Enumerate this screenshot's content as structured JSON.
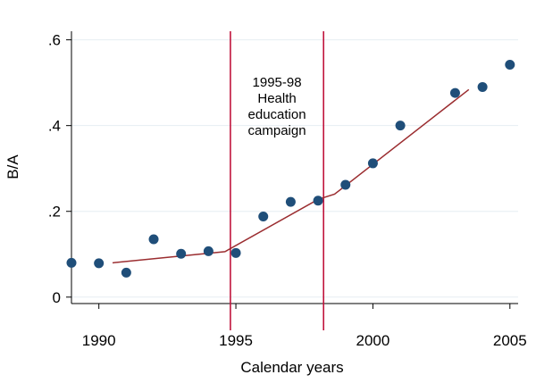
{
  "chart_data": {
    "type": "scatter",
    "xlabel": "Calendar years",
    "ylabel": "B/A",
    "xlim": [
      1989.0,
      2005.3
    ],
    "ylim": [
      -0.015,
      0.62
    ],
    "grid": true,
    "x_ticks": [
      1990,
      1995,
      2000,
      2005
    ],
    "x_tick_labels": [
      "1990",
      "1995",
      "2000",
      "2005"
    ],
    "y_ticks": [
      0,
      0.2,
      0.4,
      0.6
    ],
    "y_tick_labels": [
      "0",
      ".2",
      ".4",
      ".6"
    ],
    "points": [
      {
        "x": 1989,
        "y": 0.08
      },
      {
        "x": 1990,
        "y": 0.079
      },
      {
        "x": 1991,
        "y": 0.057
      },
      {
        "x": 1992,
        "y": 0.135
      },
      {
        "x": 1993,
        "y": 0.101
      },
      {
        "x": 1994,
        "y": 0.107
      },
      {
        "x": 1995,
        "y": 0.103
      },
      {
        "x": 1996,
        "y": 0.188
      },
      {
        "x": 1997,
        "y": 0.222
      },
      {
        "x": 1998,
        "y": 0.225
      },
      {
        "x": 1999,
        "y": 0.262
      },
      {
        "x": 2000,
        "y": 0.312
      },
      {
        "x": 2001,
        "y": 0.4
      },
      {
        "x": 2003,
        "y": 0.476
      },
      {
        "x": 2004,
        "y": 0.49
      },
      {
        "x": 2005,
        "y": 0.542
      }
    ],
    "fit_line": [
      {
        "x": 1990.5,
        "y": 0.08
      },
      {
        "x": 1994.6,
        "y": 0.106
      },
      {
        "x": 1998.0,
        "y": 0.228
      },
      {
        "x": 1998.6,
        "y": 0.24
      },
      {
        "x": 2003.5,
        "y": 0.484
      }
    ],
    "vlines": [
      1994.8,
      1998.2
    ],
    "annotation": [
      "1995-98",
      "Health",
      "education",
      "campaign"
    ],
    "colors": {
      "points": "#1f4e79",
      "fit_line": "#9b2d30",
      "vlines": "#c0143c",
      "grid": "#e6eef2"
    }
  }
}
